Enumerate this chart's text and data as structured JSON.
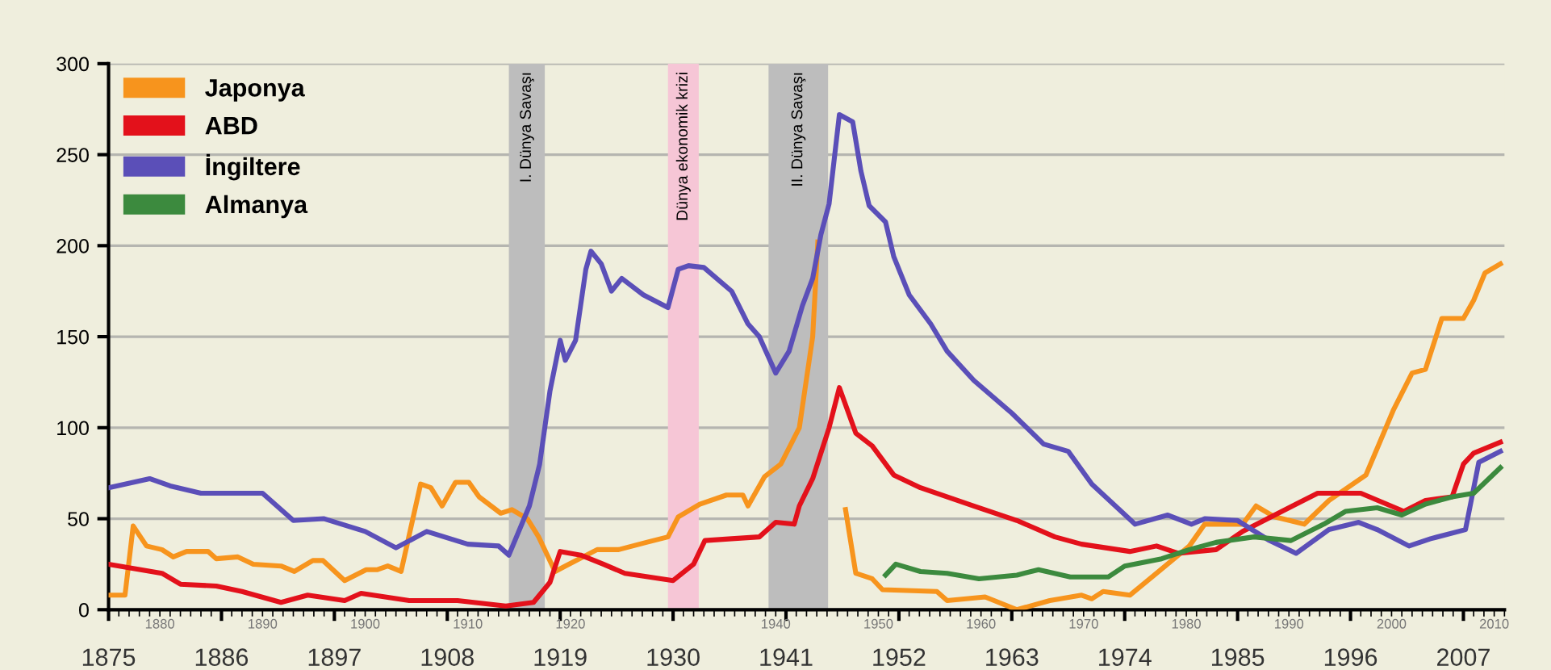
{
  "chart_data": {
    "type": "line",
    "xlim": [
      1875,
      2011
    ],
    "ylim": [
      0,
      300
    ],
    "xticks": [
      1875,
      1886,
      1897,
      1908,
      1919,
      1930,
      1941,
      1952,
      1963,
      1974,
      1985,
      1996,
      2007
    ],
    "x2lim": [
      1875,
      2011
    ],
    "x2ticks": [
      1880,
      1890,
      1900,
      1910,
      1920,
      1940,
      1950,
      1960,
      1970,
      1980,
      1990,
      2000,
      2010
    ],
    "yticks": [
      0,
      50,
      100,
      150,
      200,
      250,
      300
    ],
    "grid": "y",
    "legend": "top left",
    "marker": "none",
    "line_style": "solid",
    "bands": [
      {
        "axis": "x",
        "from": 1914,
        "to": 1917.5,
        "label": "I. Dünya Savaşı",
        "color": "#bdbdbd"
      },
      {
        "axis": "x",
        "from": 1929.5,
        "to": 1932.5,
        "label": "Dünya ekonomik krizi",
        "color": "#f6c6d6"
      },
      {
        "axis": "x",
        "from": 1939.3,
        "to": 1945.1,
        "label": "II. Dünya Savaşı",
        "color": "#bdbdbd"
      }
    ],
    "series": [
      {
        "name": "Japonya",
        "color": "#f7941d",
        "x": [
          1875,
          1876.6,
          1877.4,
          1878.7,
          1880.2,
          1881.3,
          1882.6,
          1884.7,
          1885.5,
          1887.6,
          1889.1,
          1891.8,
          1893.1,
          1894.9,
          1895.9,
          1898,
          1900.1,
          1901.2,
          1902.2,
          1903.5,
          1905.4,
          1906.4,
          1907.5,
          1908.8,
          1910.1,
          1911.1,
          1913.2,
          1914.3,
          1915.8,
          1916.9,
          1918.5,
          1919.5,
          1922.6,
          1924.7,
          1927.4,
          1929.5,
          1930.5,
          1932.6,
          1935.2,
          1936.8,
          1937.3,
          1938.9,
          1940.5,
          1942.3,
          1943.6,
          1944.1,
          1945.5,
          1946.8,
          1947.8,
          1949.4,
          1950.4,
          1955.7,
          1956.7,
          1960.4,
          1963.5,
          1966.7,
          1969.8,
          1970.8,
          1971.9,
          1974.5,
          1977.1,
          1980.3,
          1981.8,
          1985.5,
          1986.8,
          1988.6,
          1991.5,
          1993.9,
          1997.5,
          2000.2,
          2002,
          2003.3,
          2004.9,
          2007,
          2008,
          2009.1,
          2010.6
        ],
        "values": [
          8,
          8,
          46,
          35,
          33,
          29,
          32,
          32,
          28,
          29,
          25,
          24,
          21,
          27,
          27,
          16,
          22,
          22,
          24,
          21,
          69,
          67,
          57,
          70,
          70,
          62,
          53,
          55,
          50,
          40,
          21,
          24,
          33,
          33,
          37,
          40,
          51,
          58,
          63,
          63,
          57,
          73,
          80,
          100,
          150,
          202,
          null,
          55,
          20,
          17,
          11,
          10,
          5,
          7,
          0,
          5,
          8,
          6,
          10,
          8,
          20,
          35,
          47,
          47,
          57,
          51,
          47,
          60,
          74,
          110,
          130,
          132,
          160,
          160,
          170,
          185,
          190
        ]
      },
      {
        "name": "ABD",
        "color": "#e3111b",
        "x": [
          1875,
          1880.2,
          1882,
          1885.5,
          1888,
          1891.8,
          1894.4,
          1898,
          1899.6,
          1904.3,
          1909,
          1913.7,
          1916.4,
          1918,
          1919,
          1921,
          1923.2,
          1925.3,
          1930,
          1932,
          1933.1,
          1935.7,
          1938.4,
          1940,
          1941.8,
          1942.3,
          1943.6,
          1945.2,
          1946.2,
          1947.8,
          1949.4,
          1951.5,
          1954.1,
          1959.3,
          1963.5,
          1967.2,
          1969.8,
          1974.5,
          1977.1,
          1979.2,
          1982.9,
          1985.5,
          1990.7,
          1992.8,
          1997,
          2001.2,
          2003.3,
          2005.9,
          2007,
          2008,
          2010.6
        ],
        "values": [
          25,
          20,
          14,
          13,
          10,
          4,
          8,
          5,
          9,
          5,
          5,
          2,
          4,
          15,
          32,
          30,
          25,
          20,
          16,
          25,
          38,
          39,
          40,
          48,
          47,
          57,
          72,
          100,
          122,
          97,
          90,
          74,
          67,
          57,
          49,
          40,
          36,
          32,
          35,
          31,
          33,
          43,
          58,
          64,
          64,
          54,
          60,
          62,
          80,
          86,
          92
        ]
      },
      {
        "name": "İngiltere",
        "color": "#5b4fb8",
        "x": [
          1875,
          1879,
          1881,
          1884,
          1890,
          1893,
          1896,
          1900,
          1903,
          1906,
          1910,
          1913,
          1914,
          1916,
          1917,
          1918,
          1919,
          1919.5,
          1920.5,
          1921.5,
          1922,
          1923,
          1924,
          1925,
          1927.1,
          1929.5,
          1930.5,
          1931.5,
          1933,
          1935.7,
          1937.3,
          1938.4,
          1940,
          1941.3,
          1942.6,
          1943.6,
          1944.4,
          1945.2,
          1946.2,
          1947.5,
          1948.3,
          1949.1,
          1950.7,
          1951.5,
          1953,
          1955.1,
          1956.7,
          1959.3,
          1963,
          1966.1,
          1968.5,
          1970.8,
          1975,
          1978.2,
          1980.5,
          1981.8,
          1985,
          1988.1,
          1990.7,
          1993.9,
          1996.8,
          1998.6,
          2001.7,
          2003.8,
          2007.2,
          2008.5,
          2010.6
        ],
        "values": [
          67,
          72,
          68,
          64,
          64,
          49,
          50,
          43,
          34,
          43,
          36,
          35,
          30,
          57,
          80,
          120,
          148,
          137,
          148,
          187,
          197,
          190,
          175,
          182,
          173,
          166,
          187,
          189,
          188,
          175,
          157,
          150,
          130,
          142,
          167,
          182,
          206,
          223,
          272,
          268,
          241,
          222,
          213,
          194,
          173,
          157,
          142,
          126,
          108,
          91,
          87,
          69,
          47,
          52,
          47,
          50,
          49,
          38,
          31,
          44,
          48,
          44,
          35,
          39,
          44,
          81,
          87
        ]
      },
      {
        "name": "Almanya",
        "color": "#3c8a3e",
        "x": [
          1950.7,
          1951.7,
          1954.1,
          1956.7,
          1959.8,
          1963.5,
          1965.6,
          1968.7,
          1972.4,
          1974,
          1977.6,
          1980.3,
          1982.9,
          1986.6,
          1990.2,
          1993.4,
          1995.5,
          1998.6,
          2001,
          2003.3,
          2005.9,
          2008,
          2010.6
        ],
        "values": [
          19,
          25,
          21,
          20,
          17,
          19,
          22,
          18,
          18,
          24,
          28,
          33,
          37,
          40,
          38,
          47,
          54,
          56,
          52,
          58,
          62,
          64,
          78
        ]
      }
    ]
  }
}
